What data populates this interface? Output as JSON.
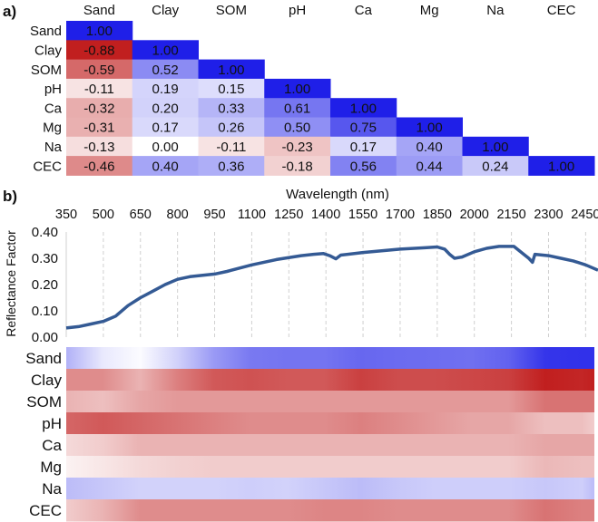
{
  "chart_data": [
    {
      "panel_label": "a)",
      "type": "heatmap",
      "variables": [
        "Sand",
        "Clay",
        "SOM",
        "pH",
        "Ca",
        "Mg",
        "Na",
        "CEC"
      ],
      "matrix": [
        [
          "1.00"
        ],
        [
          "-0.88",
          "1.00"
        ],
        [
          "-0.59",
          "0.52",
          "1.00"
        ],
        [
          "-0.11",
          "0.19",
          "0.15",
          "1.00"
        ],
        [
          "-0.32",
          "0.20",
          "0.33",
          "0.61",
          "1.00"
        ],
        [
          "-0.31",
          "0.17",
          "0.26",
          "0.50",
          "0.75",
          "1.00"
        ],
        [
          "-0.13",
          "0.00",
          "-0.11",
          "-0.23",
          "0.17",
          "0.40",
          "1.00"
        ],
        [
          "-0.46",
          "0.40",
          "0.36",
          "-0.18",
          "0.56",
          "0.44",
          "0.24",
          "1.00"
        ]
      ],
      "colors": {
        "positive": "#1f1fe8",
        "zero": "#ffffff",
        "negative": "#b80000"
      }
    },
    {
      "panel_label": "b)",
      "type": "line",
      "xlabel": "Wavelength (nm)",
      "ylabel": "Reflectance Factor",
      "x_ticks": [
        "350",
        "500",
        "650",
        "800",
        "950",
        "1100",
        "1250",
        "1400",
        "1550",
        "1700",
        "1850",
        "2000",
        "2150",
        "2300",
        "2450"
      ],
      "y_ticks": [
        "0.00",
        "0.10",
        "0.20",
        "0.30",
        "0.40"
      ],
      "xlim": [
        350,
        2500
      ],
      "ylim": [
        0,
        0.4
      ],
      "grid": "vertical dashed",
      "line_color": "#345a94",
      "x": [
        350,
        400,
        450,
        500,
        550,
        600,
        650,
        700,
        750,
        800,
        850,
        950,
        1000,
        1100,
        1200,
        1300,
        1350,
        1390,
        1415,
        1440,
        1460,
        1550,
        1700,
        1800,
        1850,
        1880,
        1900,
        1920,
        1950,
        2000,
        2050,
        2100,
        2160,
        2200,
        2220,
        2235,
        2245,
        2300,
        2350,
        2400,
        2450,
        2500
      ],
      "y": [
        0.035,
        0.04,
        0.05,
        0.06,
        0.08,
        0.12,
        0.15,
        0.175,
        0.2,
        0.22,
        0.23,
        0.24,
        0.25,
        0.275,
        0.295,
        0.31,
        0.315,
        0.318,
        0.31,
        0.298,
        0.312,
        0.322,
        0.335,
        0.34,
        0.343,
        0.335,
        0.315,
        0.3,
        0.305,
        0.325,
        0.338,
        0.345,
        0.345,
        0.315,
        0.3,
        0.285,
        0.315,
        0.31,
        0.3,
        0.29,
        0.275,
        0.255
      ]
    },
    {
      "type": "heatmap",
      "rows": [
        "Sand",
        "Clay",
        "SOM",
        "pH",
        "Ca",
        "Mg",
        "Na",
        "CEC"
      ],
      "wavelengths": [
        350,
        500,
        650,
        800,
        950,
        1100,
        1250,
        1400,
        1550,
        1700,
        1850,
        2000,
        2150,
        2300,
        2450,
        2500
      ],
      "values": [
        [
          0.35,
          0.1,
          0.02,
          0.2,
          0.45,
          0.6,
          0.62,
          0.62,
          0.68,
          0.66,
          0.65,
          0.64,
          0.7,
          0.9,
          0.92,
          0.92
        ],
        [
          -0.45,
          -0.45,
          -0.3,
          -0.5,
          -0.65,
          -0.68,
          -0.65,
          -0.65,
          -0.75,
          -0.7,
          -0.7,
          -0.72,
          -0.75,
          -0.88,
          -0.85,
          -0.88
        ],
        [
          -0.3,
          -0.25,
          -0.35,
          -0.4,
          -0.4,
          -0.4,
          -0.4,
          -0.4,
          -0.4,
          -0.4,
          -0.4,
          -0.4,
          -0.4,
          -0.55,
          -0.55,
          -0.55
        ],
        [
          -0.6,
          -0.65,
          -0.6,
          -0.55,
          -0.5,
          -0.45,
          -0.45,
          -0.45,
          -0.5,
          -0.45,
          -0.4,
          -0.35,
          -0.35,
          -0.25,
          -0.25,
          -0.2
        ],
        [
          -0.15,
          -0.2,
          -0.3,
          -0.3,
          -0.3,
          -0.3,
          -0.3,
          -0.3,
          -0.3,
          -0.3,
          -0.3,
          -0.3,
          -0.3,
          -0.35,
          -0.35,
          -0.35
        ],
        [
          -0.05,
          -0.1,
          -0.15,
          -0.18,
          -0.2,
          -0.2,
          -0.2,
          -0.2,
          -0.2,
          -0.2,
          -0.2,
          -0.2,
          -0.2,
          -0.28,
          -0.25,
          -0.25
        ],
        [
          0.3,
          0.25,
          0.2,
          0.2,
          0.2,
          0.22,
          0.2,
          0.25,
          0.3,
          0.25,
          0.22,
          0.22,
          0.22,
          0.25,
          0.22,
          0.3
        ],
        [
          -0.2,
          -0.3,
          -0.45,
          -0.45,
          -0.45,
          -0.45,
          -0.45,
          -0.48,
          -0.48,
          -0.45,
          -0.45,
          -0.45,
          -0.45,
          -0.55,
          -0.5,
          -0.5
        ]
      ]
    }
  ]
}
